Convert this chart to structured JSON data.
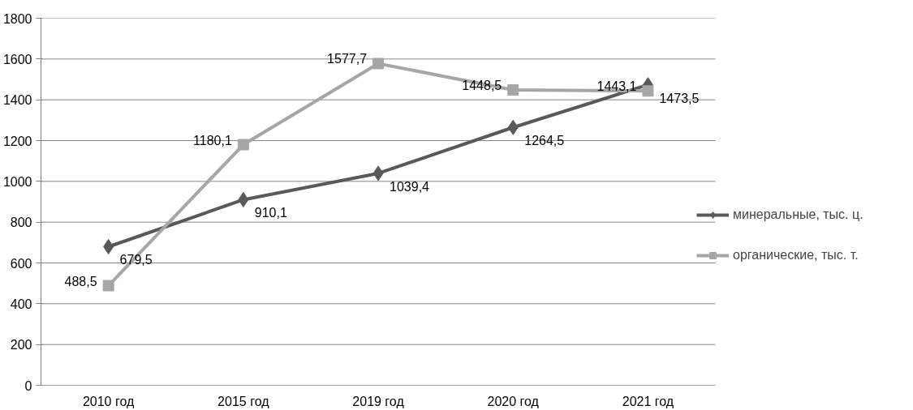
{
  "chart_data": {
    "type": "line",
    "categories": [
      "2010 год",
      "2015 год",
      "2019 год",
      "2020 год",
      "2021 год"
    ],
    "series": [
      {
        "name": "минеральные, тыс. ц.",
        "color": "#595959",
        "marker": "diamond",
        "values": [
          679.5,
          910.1,
          1039.4,
          1264.5,
          1473.5
        ],
        "value_labels": [
          "679,5",
          "910,1",
          "1039,4",
          "1264,5",
          "1473,5"
        ]
      },
      {
        "name": "органические, тыс. т.",
        "color": "#a6a6a6",
        "marker": "square",
        "values": [
          488.5,
          1180.1,
          1577.7,
          1448.5,
          1443.1
        ],
        "value_labels": [
          "488,5",
          "1180,1",
          "1577,7",
          "1448,5",
          "1443,1"
        ]
      }
    ],
    "ylim": [
      0,
      1800
    ],
    "yticks": [
      0,
      200,
      400,
      600,
      800,
      1000,
      1200,
      1400,
      1600,
      1800
    ],
    "grid": "y",
    "legend": "right",
    "line_style": "solid"
  }
}
